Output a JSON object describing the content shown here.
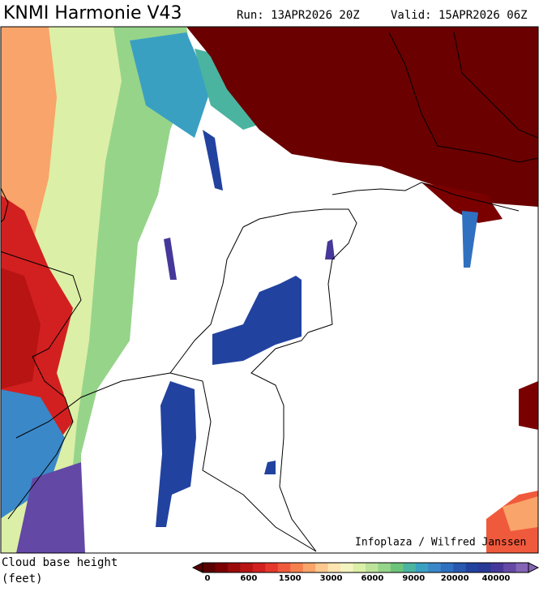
{
  "header": {
    "title": "KNMI Harmonie V43",
    "run": "Run: 13APR2026 20Z",
    "valid": "Valid: 15APR2026 06Z"
  },
  "map": {
    "credit": "Infoplaza / Wilfred Janssen"
  },
  "legend": {
    "label_line1": "Cloud base height",
    "label_line2": "(feet)",
    "ticks": [
      0,
      600,
      1500,
      3000,
      6000,
      9000,
      20000,
      40000
    ],
    "colors": [
      "#5a0000",
      "#7a0000",
      "#9a0a0a",
      "#b81414",
      "#d22020",
      "#e4382c",
      "#f05a3c",
      "#f5804e",
      "#f9a46a",
      "#fcc88e",
      "#fde4b0",
      "#f4f4c0",
      "#dcefa6",
      "#bde39a",
      "#96d48a",
      "#6cc47a",
      "#4ab4a0",
      "#3aa0c2",
      "#3a88c8",
      "#3070c0",
      "#2858b0",
      "#2242a0",
      "#283a96",
      "#46389a",
      "#6448a6",
      "#8464b4"
    ]
  }
}
